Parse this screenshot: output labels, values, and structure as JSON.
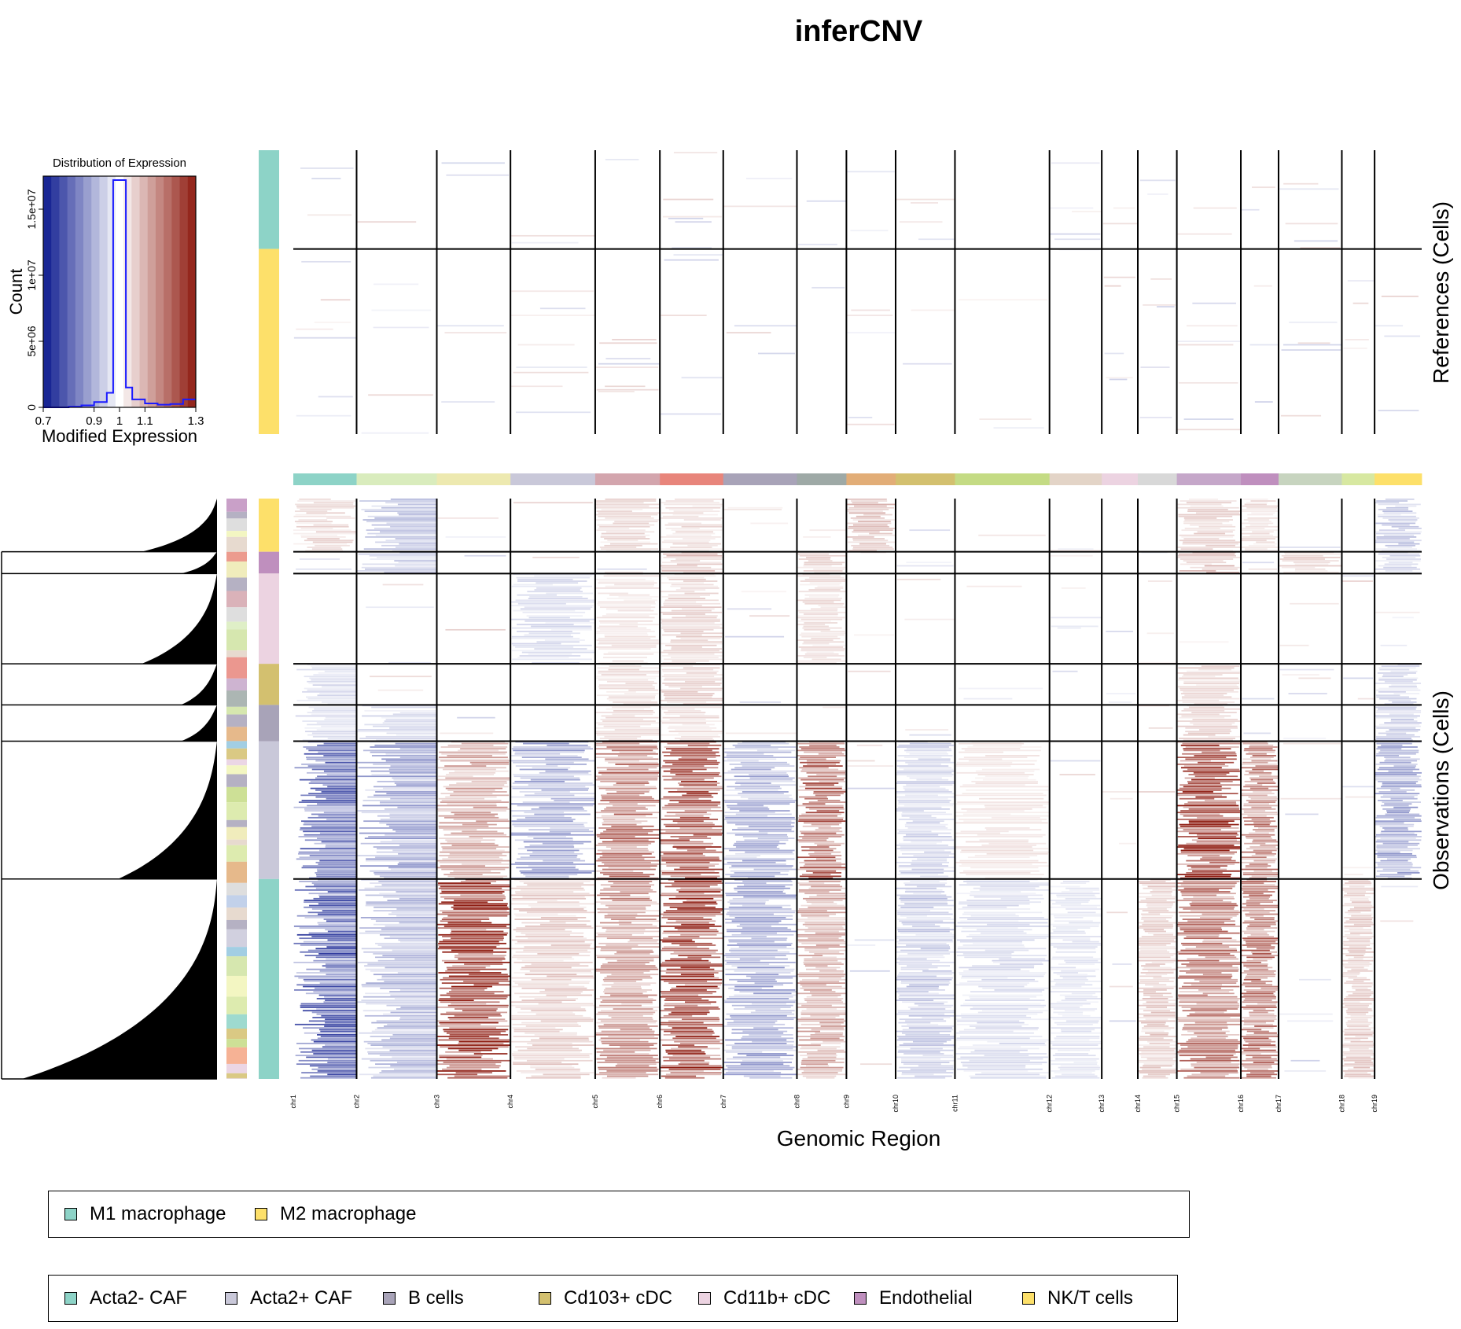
{
  "chart_data": {
    "type": "heatmap",
    "title": "inferCNV",
    "xlabel": "Genomic Region",
    "references_label": "References (Cells)",
    "observations_label": "Observations (Cells)",
    "chromosomes": [
      "chr1",
      "chr2",
      "chr3",
      "chr4",
      "chr5",
      "chr6",
      "chr7",
      "chr8",
      "chr9",
      "chr10",
      "chr11",
      "chr12",
      "chr13",
      "chr14",
      "chr15",
      "chr16",
      "chr17",
      "chr18",
      "chr19"
    ],
    "chromosome_relative_sizes": [
      6.88,
      8.72,
      8.01,
      9.21,
      7.03,
      6.89,
      8.01,
      5.38,
      5.35,
      6.45,
      10.28,
      5.68,
      3.92,
      4.24,
      6.96,
      4.1,
      6.88,
      3.56,
      5.12
    ],
    "chromosome_colors": [
      "#8dd3c7",
      "#d9ecbd",
      "#ede9b0",
      "#c9c8d9",
      "#d3a5ad",
      "#e8857b",
      "#a8a3b8",
      "#9ea9a6",
      "#e2ad77",
      "#d3c06f",
      "#c4db84",
      "#e3d4c7",
      "#ecd3e1",
      "#d8d8d8",
      "#c5a7c9",
      "#bf8fbe",
      "#c7d4bf",
      "#d7e8a1",
      "#fde06a"
    ],
    "color_scale": {
      "min": 0.7,
      "max": 1.3,
      "center": 1.0,
      "low_color": "#0c1a8e",
      "mid_color": "#ffffff",
      "high_color": "#8e1b10"
    },
    "histogram": {
      "title": "Distribution of Expression",
      "xlabel": "Modified Expression",
      "ylabel": "Count",
      "xticks": [
        "0.7",
        "0.9",
        "1",
        "1.1",
        "1.3"
      ],
      "yticks": [
        "0",
        "5e+06",
        "1e+07",
        "1.5e+07"
      ],
      "xlim": [
        0.7,
        1.3
      ],
      "ylim": [
        0,
        17500000
      ],
      "bins": [
        {
          "x0": 0.7,
          "x1": 0.75,
          "count": 0
        },
        {
          "x0": 0.75,
          "x1": 0.8,
          "count": 0
        },
        {
          "x0": 0.8,
          "x1": 0.85,
          "count": 50000
        },
        {
          "x0": 0.85,
          "x1": 0.9,
          "count": 150000
        },
        {
          "x0": 0.9,
          "x1": 0.95,
          "count": 400000
        },
        {
          "x0": 0.95,
          "x1": 0.975,
          "count": 1100000
        },
        {
          "x0": 0.975,
          "x1": 1.025,
          "count": 17200000
        },
        {
          "x0": 1.025,
          "x1": 1.05,
          "count": 1500000
        },
        {
          "x0": 1.05,
          "x1": 1.1,
          "count": 600000
        },
        {
          "x0": 1.1,
          "x1": 1.15,
          "count": 300000
        },
        {
          "x0": 1.15,
          "x1": 1.2,
          "count": 200000
        },
        {
          "x0": 1.2,
          "x1": 1.25,
          "count": 250000
        },
        {
          "x0": 1.25,
          "x1": 1.3,
          "count": 600000
        }
      ]
    },
    "references": {
      "groups": [
        {
          "name": "M1 macrophage",
          "color": "#8dd3c7",
          "cells": 24
        },
        {
          "name": "M2 macrophage",
          "color": "#fde06a",
          "cells": 45
        }
      ]
    },
    "observations": {
      "groups": [
        {
          "name": "NK/T cells",
          "color": "#fde06a",
          "cells": 66,
          "cnv": {
            "chr1": 1.05,
            "chr2": 0.93,
            "chr5": 1.05,
            "chr6": 1.04,
            "chr9": 1.08,
            "chr15": 1.05,
            "chr16": 1.04,
            "chr19": 0.94
          }
        },
        {
          "name": "Endothelial",
          "color": "#bf8fbe",
          "cells": 27,
          "cnv": {
            "chr2": 0.94,
            "chr6": 1.07,
            "chr8": 1.05,
            "chr15": 1.08,
            "chr17": 1.05,
            "chr19": 0.95
          }
        },
        {
          "name": "Cd11b+ cDC",
          "color": "#ecd3e1",
          "cells": 112,
          "cnv": {
            "chr4": 0.96,
            "chr5": 1.03,
            "chr6": 1.05,
            "chr8": 1.04
          }
        },
        {
          "name": "Cd103+ cDC",
          "color": "#d3c06f",
          "cells": 51,
          "cnv": {
            "chr1": 0.96,
            "chr5": 1.04,
            "chr6": 1.05,
            "chr15": 1.05,
            "chr19": 0.95
          }
        },
        {
          "name": "B cells",
          "color": "#a8a3b8",
          "cells": 45,
          "cnv": {
            "chr1": 0.96,
            "chr2": 0.96,
            "chr5": 1.04,
            "chr6": 1.04,
            "chr15": 1.05,
            "chr19": 0.94
          }
        },
        {
          "name": "Acta2+ CAF",
          "color": "#c9c8d9",
          "cells": 171,
          "cnv": {
            "chr1": 0.84,
            "chr2": 0.9,
            "chr3": 1.1,
            "chr4": 0.9,
            "chr5": 1.16,
            "chr6": 1.2,
            "chr7": 0.91,
            "chr8": 1.18,
            "chr10": 0.95,
            "chr11": 1.03,
            "chr15": 1.25,
            "chr16": 1.14,
            "chr19": 0.9
          }
        },
        {
          "name": "Acta2- CAF",
          "color": "#8dd3c7",
          "cells": 248,
          "cnv": {
            "chr1": 0.82,
            "chr2": 0.92,
            "chr3": 1.25,
            "chr4": 1.06,
            "chr5": 1.12,
            "chr6": 1.22,
            "chr7": 0.9,
            "chr8": 1.1,
            "chr10": 0.94,
            "chr11": 0.96,
            "chr12": 0.97,
            "chr14": 1.06,
            "chr15": 1.15,
            "chr16": 1.16,
            "chr18": 1.06
          }
        }
      ]
    }
  },
  "legend_references": {
    "items": [
      {
        "label": "M1 macrophage",
        "color": "#8dd3c7"
      },
      {
        "label": "M2 macrophage",
        "color": "#fde06a"
      }
    ]
  },
  "legend_observations": {
    "items": [
      {
        "label": "Acta2- CAF",
        "color": "#8dd3c7"
      },
      {
        "label": "Acta2+ CAF",
        "color": "#c9c8d9"
      },
      {
        "label": "B cells",
        "color": "#a8a3b8"
      },
      {
        "label": "Cd103+ cDC",
        "color": "#d3c06f"
      },
      {
        "label": "Cd11b+ cDC",
        "color": "#ecd3e1"
      },
      {
        "label": "Endothelial",
        "color": "#bf8fbe"
      },
      {
        "label": "NK/T cells",
        "color": "#fde06a"
      }
    ]
  }
}
